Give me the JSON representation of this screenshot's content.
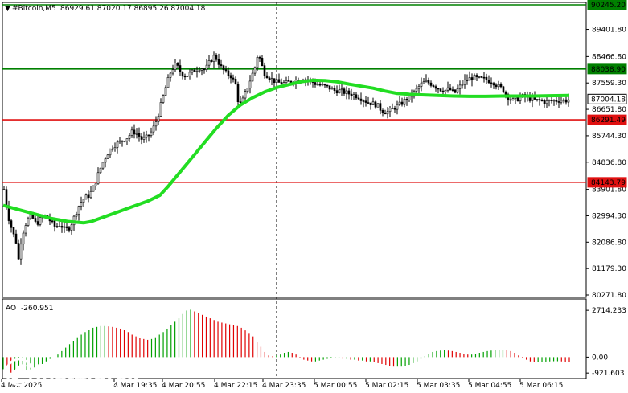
{
  "header": {
    "symbol": "#Bitcoin,M5",
    "ohlc": "86929.61 87020.17 86895.26 87004.18"
  },
  "watermark": {
    "brand": "instaforex",
    "tagline": "Instant Forex Trading"
  },
  "colors": {
    "candle": "#000000",
    "ma": "#22dd22",
    "resistance_green": "#008000",
    "support_red": "#e01010",
    "ao_up": "#00a000",
    "ao_down": "#e00000",
    "grid": "#000000"
  },
  "chart_data": [
    {
      "type": "candlestick",
      "title": "#Bitcoin,M5",
      "ylim": [
        80271.8,
        90245.2
      ],
      "y_ticks": [
        "89401.80",
        "88466.80",
        "87559.30",
        "86651.80",
        "85744.30",
        "84836.80",
        "83901.80",
        "82994.30",
        "82086.80",
        "81179.30",
        "80271.80"
      ],
      "x_ticks": [
        "4 Mar 2025",
        "4 Mar 19:35",
        "4 Mar 20:55",
        "4 Mar 22:15",
        "4 Mar 23:35",
        "5 Mar 00:55",
        "5 Mar 02:15",
        "5 Mar 03:35",
        "5 Mar 04:55",
        "5 Mar 06:15"
      ],
      "price_labels": [
        {
          "text": "90245.20",
          "value": 90245.2,
          "color": "#008000",
          "style": "line-label"
        },
        {
          "text": "88038.90",
          "value": 88038.9,
          "color": "#008000",
          "style": "line-label"
        },
        {
          "text": "87004.18",
          "value": 87004.18,
          "color": "#000000",
          "style": "current"
        },
        {
          "text": "86291.49",
          "value": 86291.49,
          "color": "#e01010",
          "style": "line-label"
        },
        {
          "text": "84143.79",
          "value": 84143.79,
          "color": "#e01010",
          "style": "line-label"
        }
      ],
      "horizontal_levels": [
        {
          "value": 90245.2,
          "color": "#008000"
        },
        {
          "value": 88038.9,
          "color": "#008000"
        },
        {
          "value": 86291.49,
          "color": "#e01010"
        },
        {
          "value": 84143.79,
          "color": "#e01010"
        }
      ],
      "close_path": [
        [
          0,
          83900
        ],
        [
          5,
          83000
        ],
        [
          10,
          82500
        ],
        [
          15,
          82100
        ],
        [
          18,
          81500
        ],
        [
          22,
          82300
        ],
        [
          28,
          82800
        ],
        [
          34,
          83000
        ],
        [
          40,
          82700
        ],
        [
          46,
          82900
        ],
        [
          52,
          83000
        ],
        [
          58,
          82800
        ],
        [
          64,
          82600
        ],
        [
          70,
          82700
        ],
        [
          76,
          82500
        ],
        [
          82,
          82600
        ],
        [
          88,
          83000
        ],
        [
          94,
          83400
        ],
        [
          100,
          83600
        ],
        [
          106,
          83700
        ],
        [
          112,
          84000
        ],
        [
          118,
          84500
        ],
        [
          124,
          84900
        ],
        [
          130,
          85200
        ],
        [
          136,
          85400
        ],
        [
          142,
          85500
        ],
        [
          148,
          85600
        ],
        [
          154,
          85700
        ],
        [
          160,
          85900
        ],
        [
          166,
          85800
        ],
        [
          172,
          85600
        ],
        [
          178,
          85700
        ],
        [
          184,
          85900
        ],
        [
          190,
          86300
        ],
        [
          196,
          86900
        ],
        [
          202,
          87500
        ],
        [
          208,
          88000
        ],
        [
          214,
          88200
        ],
        [
          220,
          87900
        ],
        [
          226,
          87800
        ],
        [
          232,
          87900
        ],
        [
          238,
          88000
        ],
        [
          244,
          88100
        ],
        [
          250,
          88000
        ],
        [
          256,
          88300
        ],
        [
          262,
          88500
        ],
        [
          266,
          88300
        ],
        [
          270,
          88100
        ],
        [
          276,
          87900
        ],
        [
          282,
          87800
        ],
        [
          288,
          87500
        ],
        [
          292,
          86800
        ],
        [
          296,
          86900
        ],
        [
          300,
          87200
        ],
        [
          304,
          87500
        ],
        [
          308,
          87800
        ],
        [
          312,
          88100
        ],
        [
          316,
          88600
        ],
        [
          320,
          88200
        ],
        [
          324,
          87900
        ],
        [
          328,
          87800
        ],
        [
          332,
          87700
        ],
        [
          338,
          87600
        ],
        [
          344,
          87550
        ],
        [
          350,
          87550
        ],
        [
          356,
          87600
        ],
        [
          362,
          87650
        ],
        [
          368,
          87700
        ],
        [
          374,
          87700
        ],
        [
          380,
          87650
        ],
        [
          386,
          87550
        ],
        [
          392,
          87500
        ],
        [
          398,
          87450
        ],
        [
          404,
          87400
        ],
        [
          410,
          87300
        ],
        [
          416,
          87300
        ],
        [
          422,
          87250
        ],
        [
          428,
          87200
        ],
        [
          434,
          87150
        ],
        [
          440,
          87100
        ],
        [
          446,
          87000
        ],
        [
          452,
          86900
        ],
        [
          458,
          86850
        ],
        [
          464,
          86800
        ],
        [
          470,
          86600
        ],
        [
          476,
          86550
        ],
        [
          482,
          86650
        ],
        [
          488,
          86750
        ],
        [
          494,
          86850
        ],
        [
          500,
          87000
        ],
        [
          506,
          87100
        ],
        [
          512,
          87300
        ],
        [
          518,
          87500
        ],
        [
          524,
          87600
        ],
        [
          530,
          87550
        ],
        [
          536,
          87450
        ],
        [
          542,
          87350
        ],
        [
          548,
          87300
        ],
        [
          554,
          87350
        ],
        [
          560,
          87200
        ],
        [
          566,
          87400
        ],
        [
          572,
          87600
        ],
        [
          578,
          87700
        ],
        [
          584,
          87750
        ],
        [
          590,
          87700
        ],
        [
          596,
          87700
        ],
        [
          602,
          87650
        ],
        [
          608,
          87600
        ],
        [
          614,
          87450
        ],
        [
          620,
          87350
        ],
        [
          626,
          87100
        ],
        [
          632,
          86950
        ],
        [
          638,
          87000
        ],
        [
          644,
          87100
        ],
        [
          650,
          87050
        ],
        [
          656,
          87000
        ],
        [
          662,
          86950
        ],
        [
          668,
          86950
        ],
        [
          674,
          86900
        ],
        [
          680,
          86950
        ],
        [
          686,
          86950
        ],
        [
          692,
          86980
        ],
        [
          698,
          86950
        ],
        [
          704,
          87004
        ]
      ],
      "ma_path": [
        [
          0,
          83350
        ],
        [
          20,
          83200
        ],
        [
          40,
          83050
        ],
        [
          60,
          82900
        ],
        [
          80,
          82800
        ],
        [
          100,
          82750
        ],
        [
          110,
          82800
        ],
        [
          125,
          82950
        ],
        [
          140,
          83100
        ],
        [
          160,
          83300
        ],
        [
          180,
          83500
        ],
        [
          195,
          83700
        ],
        [
          205,
          84000
        ],
        [
          220,
          84500
        ],
        [
          235,
          85000
        ],
        [
          250,
          85500
        ],
        [
          265,
          86000
        ],
        [
          280,
          86450
        ],
        [
          295,
          86800
        ],
        [
          310,
          87050
        ],
        [
          325,
          87250
        ],
        [
          340,
          87400
        ],
        [
          355,
          87500
        ],
        [
          370,
          87600
        ],
        [
          385,
          87650
        ],
        [
          400,
          87640
        ],
        [
          415,
          87600
        ],
        [
          430,
          87520
        ],
        [
          445,
          87450
        ],
        [
          460,
          87380
        ],
        [
          475,
          87280
        ],
        [
          490,
          87200
        ],
        [
          505,
          87170
        ],
        [
          520,
          87150
        ],
        [
          540,
          87130
        ],
        [
          560,
          87110
        ],
        [
          580,
          87100
        ],
        [
          600,
          87100
        ],
        [
          620,
          87110
        ],
        [
          640,
          87110
        ],
        [
          660,
          87110
        ],
        [
          680,
          87120
        ],
        [
          704,
          87130
        ]
      ]
    },
    {
      "type": "bar",
      "title": "AO -260.951",
      "indicator": "AO",
      "value_label": "-260.951",
      "ylim": [
        -1100,
        3000
      ],
      "y_ticks": [
        "2714.233",
        "0.00",
        "-921.603"
      ],
      "values": [
        -700,
        -800,
        -900,
        -900,
        -850,
        -800,
        -750,
        -700,
        -600,
        -500,
        -400,
        -250,
        -100,
        0,
        150,
        350,
        550,
        750,
        950,
        1150,
        1300,
        1450,
        1600,
        1700,
        1750,
        1800,
        1800,
        1780,
        1750,
        1700,
        1650,
        1600,
        1450,
        1300,
        1200,
        1100,
        1050,
        1000,
        1050,
        1150,
        1300,
        1450,
        1650,
        1850,
        2050,
        2250,
        2500,
        2700,
        2750,
        2650,
        2550,
        2450,
        2350,
        2250,
        2150,
        2050,
        2000,
        1950,
        1900,
        1850,
        1800,
        1700,
        1550,
        1400,
        1200,
        900,
        600,
        300,
        100,
        50,
        100,
        150,
        250,
        300,
        250,
        150,
        -50,
        -150,
        -200,
        -250,
        -250,
        -200,
        -150,
        -100,
        -50,
        -50,
        -50,
        -100,
        -100,
        -150,
        -150,
        -200,
        -200,
        -250,
        -250,
        -300,
        -350,
        -400,
        -450,
        -500,
        -550,
        -550,
        -550,
        -500,
        -450,
        -350,
        -250,
        -100,
        50,
        200,
        300,
        350,
        380,
        400,
        380,
        350,
        300,
        250,
        200,
        150,
        150,
        200,
        250,
        300,
        350,
        380,
        400,
        420,
        420,
        400,
        350,
        250,
        100,
        -50,
        -150,
        -250,
        -300,
        -300,
        -280,
        -260,
        -250,
        -240,
        -240,
        -250,
        -260,
        -261
      ]
    }
  ]
}
